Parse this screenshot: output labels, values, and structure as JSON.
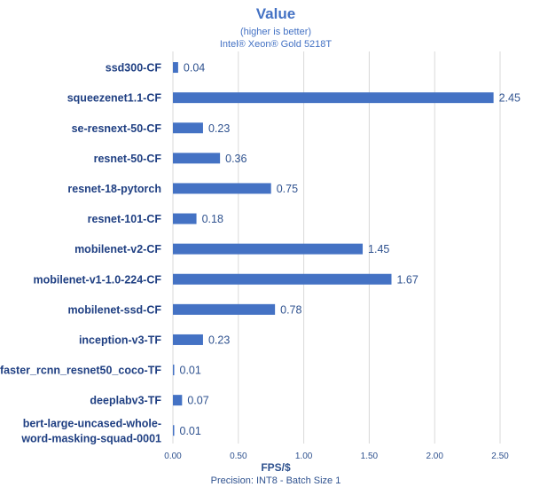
{
  "chart_data": {
    "type": "bar",
    "orientation": "horizontal",
    "title": "Value",
    "subtitle_lines": [
      "(higher is better)",
      "Intel® Xeon® Gold 5218T"
    ],
    "xlabel": "FPS/$",
    "note": "Precision: INT8 - Batch Size 1",
    "xlim": [
      0,
      2.5
    ],
    "xticks": [
      "0.00",
      "0.50",
      "1.00",
      "1.50",
      "2.00",
      "2.50"
    ],
    "grid": true,
    "bar_color": "#4472c4",
    "categories": [
      [
        "ssd300-CF"
      ],
      [
        "squeezenet1.1-CF"
      ],
      [
        "se-resnext-50-CF"
      ],
      [
        "resnet-50-CF"
      ],
      [
        "resnet-18-pytorch"
      ],
      [
        "resnet-101-CF"
      ],
      [
        "mobilenet-v2-CF"
      ],
      [
        "mobilenet-v1-1.0-224-CF"
      ],
      [
        "mobilenet-ssd-CF"
      ],
      [
        "inception-v3-TF"
      ],
      [
        "faster_rcnn_resnet50_coco-TF"
      ],
      [
        "deeplabv3-TF"
      ],
      [
        "bert-large-uncased-whole-",
        "word-masking-squad-0001"
      ]
    ],
    "values": [
      0.04,
      2.45,
      0.23,
      0.36,
      0.75,
      0.18,
      1.45,
      1.67,
      0.78,
      0.23,
      0.01,
      0.07,
      0.01
    ],
    "value_labels": [
      "0.04",
      "2.45",
      "0.23",
      "0.36",
      "0.75",
      "0.18",
      "1.45",
      "1.67",
      "0.78",
      "0.23",
      "0.01",
      "0.07",
      "0.01"
    ]
  }
}
